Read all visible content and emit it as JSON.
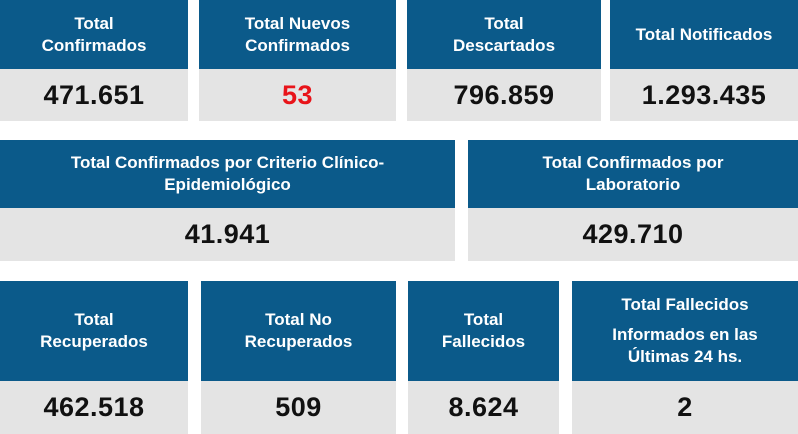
{
  "colors": {
    "header_bg": "#0b5a8a",
    "value_bg": "#e4e4e4",
    "highlight": "#e8141a"
  },
  "row1": [
    {
      "title": "Total Confirmados",
      "value": "471.651"
    },
    {
      "title": "Total Nuevos Confirmados",
      "value": "53"
    },
    {
      "title": "Total Descartados",
      "value": "796.859"
    },
    {
      "title": "Total Notificados",
      "value": "1.293.435"
    }
  ],
  "row2": [
    {
      "title": "Total Confirmados por Criterio Clínico-Epidemiológico",
      "value": "41.941"
    },
    {
      "title": "Total Confirmados por Laboratorio",
      "value": "429.710"
    }
  ],
  "row3": [
    {
      "title": "Total Recuperados",
      "value": "462.518"
    },
    {
      "title": "Total No Recuperados",
      "value": "509"
    },
    {
      "title": "Total Fallecidos",
      "value": "8.624"
    },
    {
      "title": "Total Fallecidos",
      "subtitle": "Informados en las Últimas 24 hs.",
      "value": "2"
    }
  ]
}
